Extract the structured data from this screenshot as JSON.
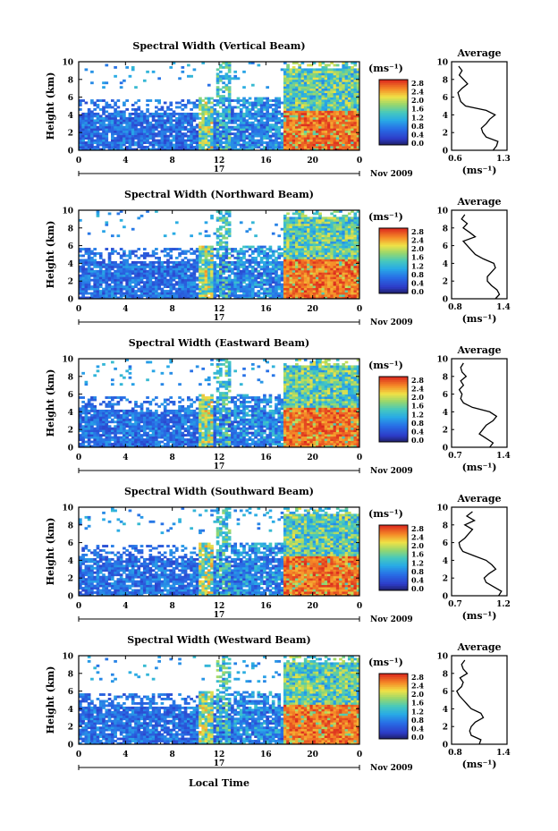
{
  "figure": {
    "xlabel": "Local Time",
    "date_label": "Nov 2009",
    "day_label": "17",
    "avg_title": "Average",
    "units_label": "(ms⁻¹)",
    "avg_unit_label": "(ms⁻¹)",
    "colorbar_ticks": [
      "2.8",
      "2.4",
      "2.0",
      "1.6",
      "1.2",
      "0.8",
      "0.4",
      "0.0"
    ],
    "colorbar_colors": [
      "#d73027",
      "#f46d43",
      "#fdae61",
      "#fee08b",
      "#d9ef8b",
      "#66c2a5",
      "#3288bd",
      "#5e4fa2",
      "#2b2b7a"
    ]
  },
  "chart_data": [
    {
      "type": "heatmap",
      "title": "Spectral Width (Vertical Beam)",
      "xlabel": "Local Time",
      "ylabel": "Height (km)",
      "xlim": [
        0,
        24
      ],
      "ylim": [
        0,
        10
      ],
      "x_ticks": [
        "0",
        "4",
        "8",
        "12",
        "16",
        "20",
        "0"
      ],
      "y_ticks": [
        "0",
        "2",
        "4",
        "6",
        "8",
        "10"
      ],
      "colorbar_range": [
        0,
        2.8
      ],
      "profile": {
        "xlim": [
          0.6,
          1.3
        ],
        "x_ticks": [
          "0.6",
          "1.3"
        ],
        "heights": [
          0,
          0.5,
          1,
          1.5,
          2,
          2.5,
          3,
          3.5,
          4,
          4.5,
          5,
          5.5,
          6,
          6.5,
          7,
          7.5,
          8,
          8.5,
          9,
          9.5
        ],
        "values": [
          1.15,
          1.2,
          1.22,
          1.05,
          1.0,
          0.98,
          1.05,
          1.1,
          1.18,
          1.05,
          0.75,
          0.68,
          0.66,
          0.64,
          0.7,
          0.78,
          0.72,
          0.66,
          0.7,
          0.65
        ]
      }
    },
    {
      "type": "heatmap",
      "title": "Spectral Width (Northward Beam)",
      "xlabel": "Local Time",
      "ylabel": "Height (km)",
      "xlim": [
        0,
        24
      ],
      "ylim": [
        0,
        10
      ],
      "x_ticks": [
        "0",
        "4",
        "8",
        "12",
        "16",
        "20",
        "0"
      ],
      "y_ticks": [
        "0",
        "2",
        "4",
        "6",
        "8",
        "10"
      ],
      "colorbar_range": [
        0,
        2.8
      ],
      "profile": {
        "xlim": [
          0.8,
          1.4
        ],
        "x_ticks": [
          "0.8",
          "1.4"
        ],
        "heights": [
          0,
          0.5,
          1,
          1.5,
          2,
          2.5,
          3,
          3.5,
          4,
          4.5,
          5,
          5.5,
          6,
          6.5,
          7,
          7.5,
          8,
          8.5,
          9,
          9.5
        ],
        "values": [
          1.3,
          1.35,
          1.32,
          1.25,
          1.2,
          1.2,
          1.25,
          1.3,
          1.28,
          1.15,
          1.05,
          1.0,
          0.95,
          0.9,
          1.05,
          0.98,
          0.9,
          0.95,
          0.88,
          0.92
        ]
      }
    },
    {
      "type": "heatmap",
      "title": "Spectral Width (Eastward Beam)",
      "xlabel": "Local Time",
      "ylabel": "Height (km)",
      "xlim": [
        0,
        24
      ],
      "ylim": [
        0,
        10
      ],
      "x_ticks": [
        "0",
        "4",
        "8",
        "12",
        "16",
        "20",
        "0"
      ],
      "y_ticks": [
        "0",
        "2",
        "4",
        "6",
        "8",
        "10"
      ],
      "colorbar_range": [
        0,
        2.8
      ],
      "profile": {
        "xlim": [
          0.7,
          1.4
        ],
        "x_ticks": [
          "0.7",
          "1.4"
        ],
        "heights": [
          0,
          0.5,
          1,
          1.5,
          2,
          2.5,
          3,
          3.5,
          4,
          4.5,
          5,
          5.5,
          6,
          6.5,
          7,
          7.5,
          8,
          8.5,
          9,
          9.5
        ],
        "values": [
          1.2,
          1.25,
          1.15,
          1.05,
          1.1,
          1.15,
          1.25,
          1.3,
          1.2,
          0.95,
          0.82,
          0.78,
          0.8,
          0.76,
          0.82,
          0.78,
          0.86,
          0.8,
          0.78,
          0.82
        ]
      }
    },
    {
      "type": "heatmap",
      "title": "Spectral Width (Southward Beam)",
      "xlabel": "Local Time",
      "ylabel": "Height (km)",
      "xlim": [
        0,
        24
      ],
      "ylim": [
        0,
        10
      ],
      "x_ticks": [
        "0",
        "4",
        "8",
        "12",
        "16",
        "20",
        "0"
      ],
      "y_ticks": [
        "0",
        "2",
        "4",
        "6",
        "8",
        "10"
      ],
      "colorbar_range": [
        0,
        2.8
      ],
      "profile": {
        "xlim": [
          0.7,
          1.2
        ],
        "x_ticks": [
          "0.7",
          "1.2"
        ],
        "heights": [
          0,
          0.5,
          1,
          1.5,
          2,
          2.5,
          3,
          3.5,
          4,
          4.5,
          5,
          5.5,
          6,
          6.5,
          7,
          7.5,
          8,
          8.5,
          9,
          9.5
        ],
        "values": [
          1.15,
          1.18,
          1.1,
          1.02,
          1.0,
          1.05,
          1.12,
          1.08,
          1.02,
          0.9,
          0.78,
          0.75,
          0.74,
          0.8,
          0.84,
          0.88,
          0.8,
          0.9,
          0.82,
          0.88
        ]
      }
    },
    {
      "type": "heatmap",
      "title": "Spectral Width (Westward Beam)",
      "xlabel": "Local Time",
      "ylabel": "Height (km)",
      "xlim": [
        0,
        24
      ],
      "ylim": [
        0,
        10
      ],
      "x_ticks": [
        "0",
        "4",
        "8",
        "12",
        "16",
        "20",
        "0"
      ],
      "y_ticks": [
        "0",
        "2",
        "4",
        "6",
        "8",
        "10"
      ],
      "colorbar_range": [
        0,
        2.8
      ],
      "profile": {
        "xlim": [
          0.8,
          1.4
        ],
        "x_ticks": [
          "0.8",
          "1.4"
        ],
        "heights": [
          0,
          0.5,
          1,
          1.5,
          2,
          2.5,
          3,
          3.5,
          4,
          4.5,
          5,
          5.5,
          6,
          6.5,
          7,
          7.5,
          8,
          8.5,
          9,
          9.5
        ],
        "values": [
          1.1,
          1.12,
          1.0,
          0.98,
          1.0,
          1.05,
          1.15,
          1.12,
          1.0,
          0.95,
          0.9,
          0.85,
          0.82,
          0.88,
          0.9,
          0.86,
          0.95,
          0.9,
          0.88,
          0.92
        ]
      }
    }
  ]
}
